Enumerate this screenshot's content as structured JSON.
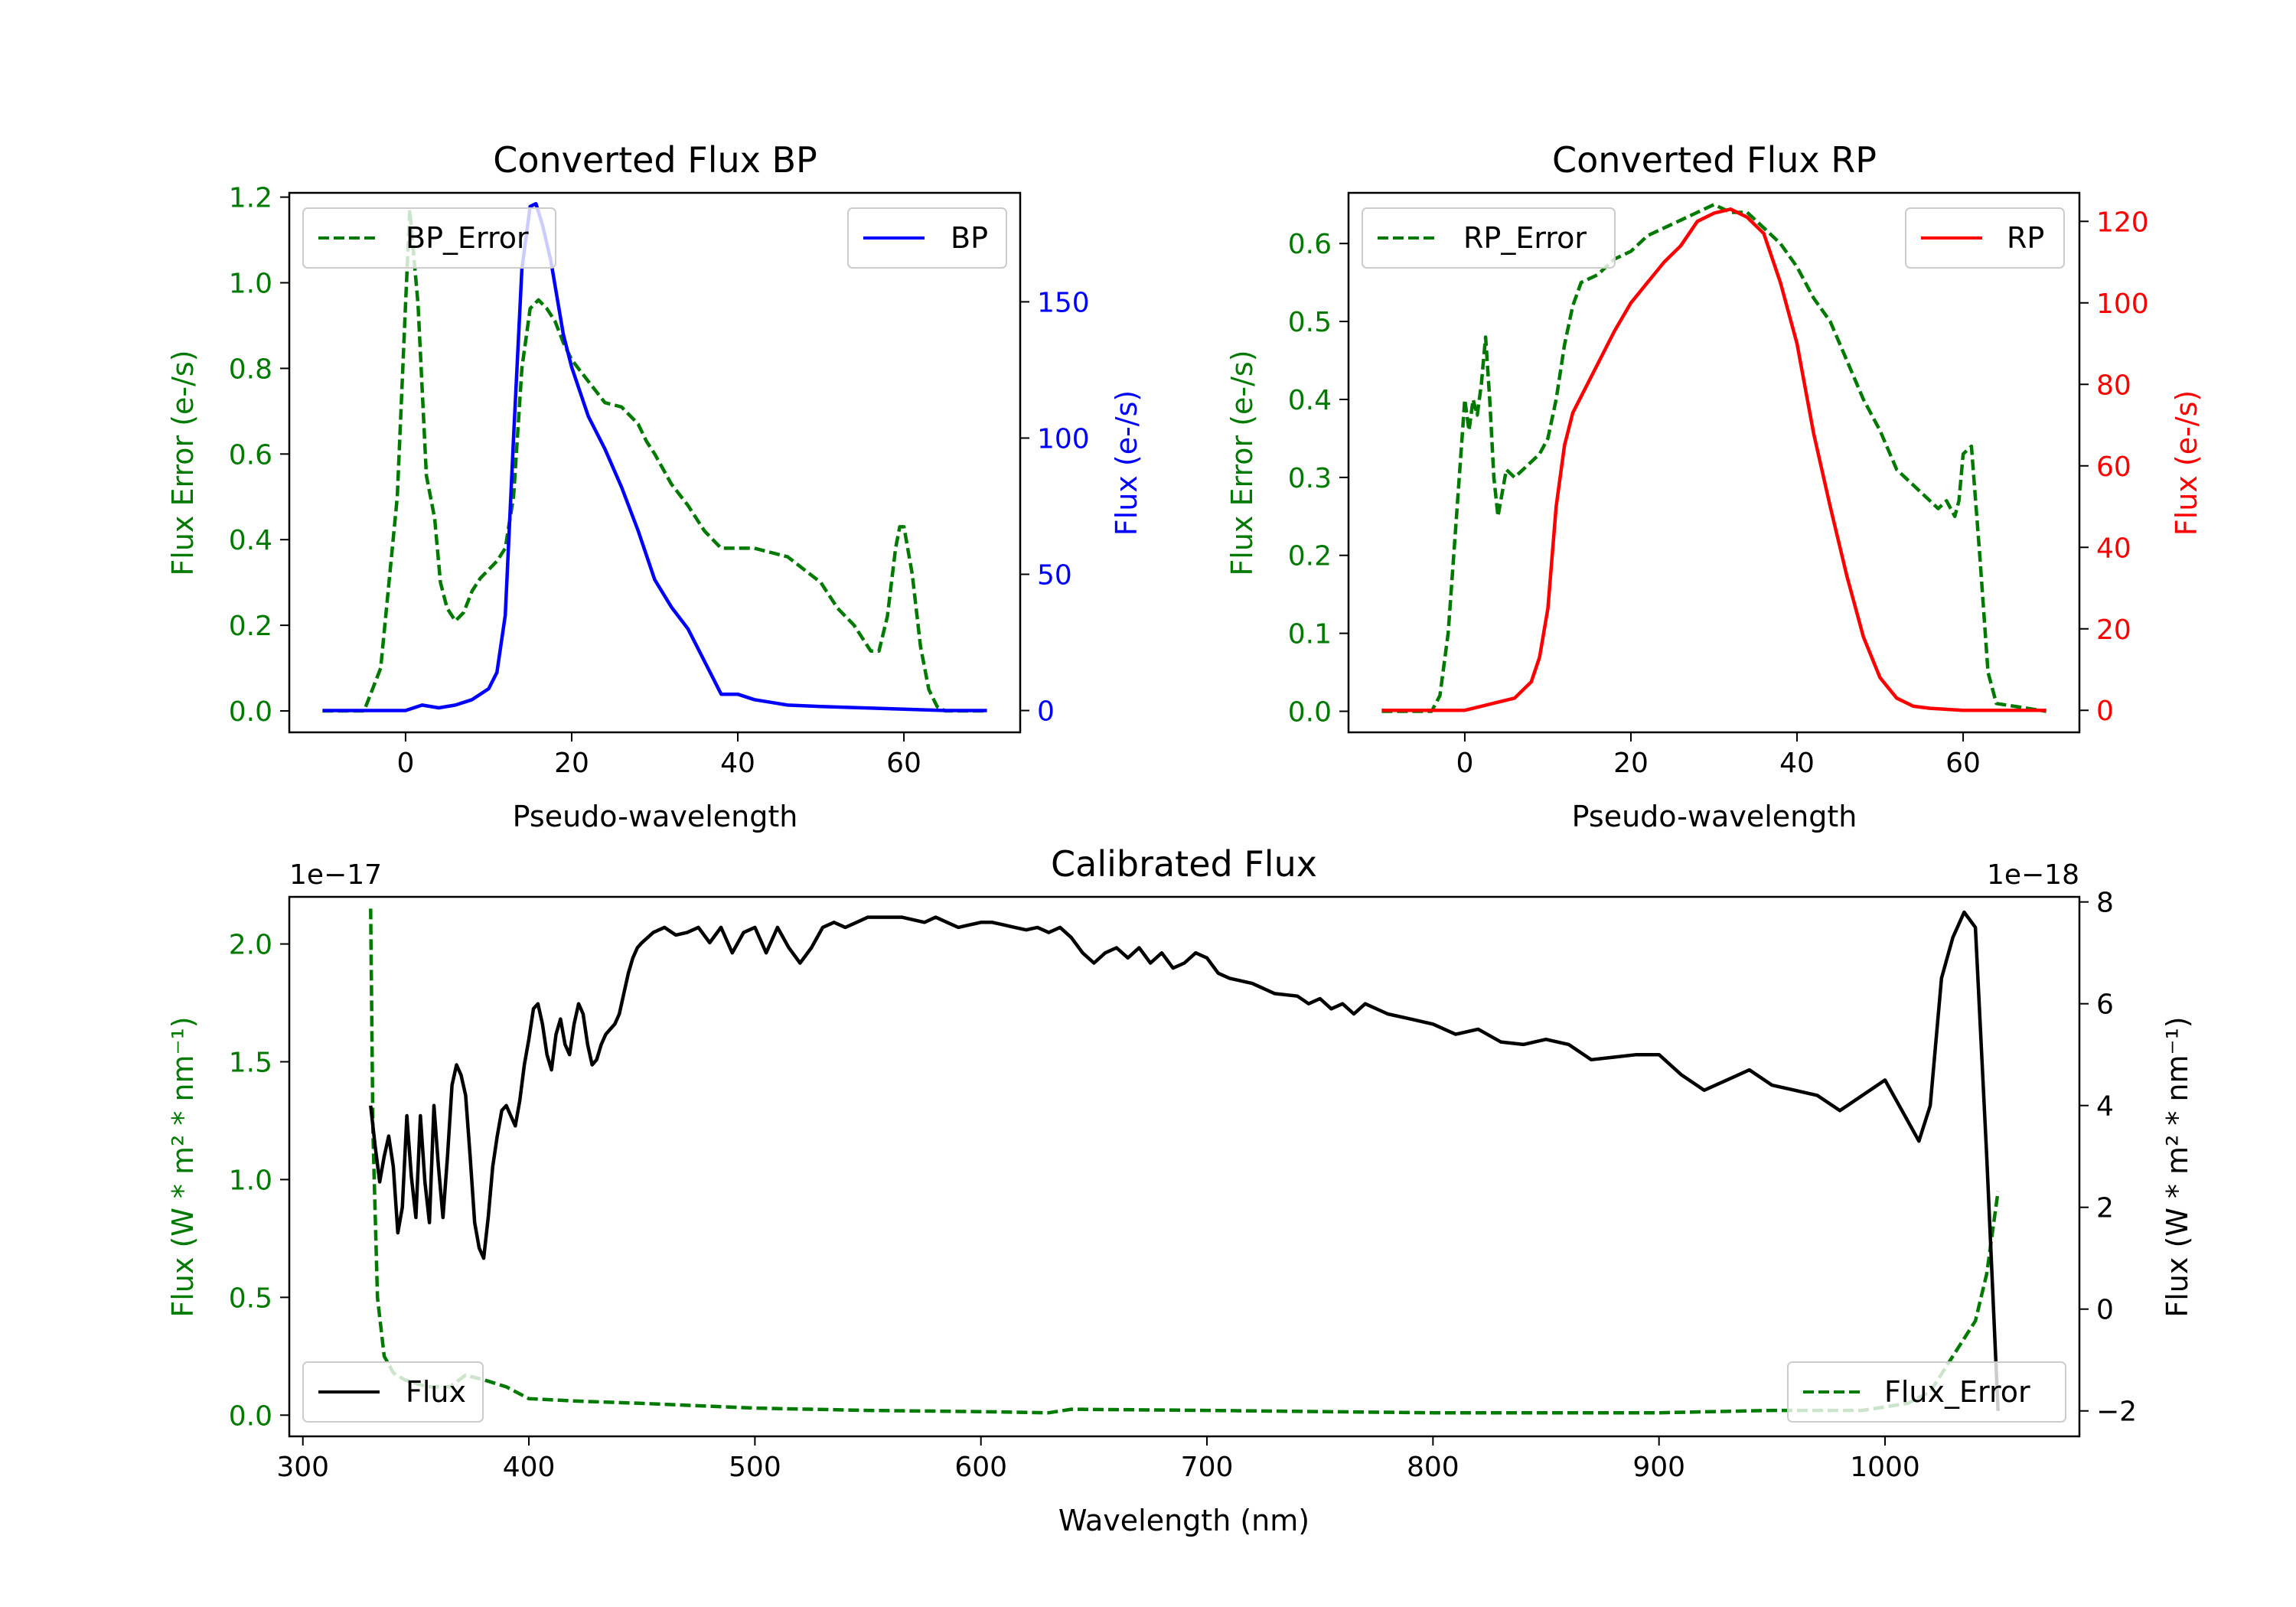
{
  "colors": {
    "green": "#007a00",
    "blue": "#0000ff",
    "red": "#ff0000",
    "black": "#000000"
  },
  "chart_data": [
    {
      "id": "bp",
      "type": "line",
      "title": "Converted Flux BP",
      "xlabel": "Pseudo-wavelength",
      "ylabel_left": "Flux Error (e-/s)",
      "ylabel_right": "Flux (e-/s)",
      "xlim": [
        -14,
        74
      ],
      "ylim_left": [
        -0.05,
        1.21
      ],
      "ylim_right": [
        -8,
        190
      ],
      "xticks": [
        0,
        20,
        40,
        60
      ],
      "yticks_left": [
        "0.0",
        "0.2",
        "0.4",
        "0.6",
        "0.8",
        "1.0",
        "1.2"
      ],
      "yticks_right": [
        "0",
        "50",
        "100",
        "150"
      ],
      "legend_left": {
        "label": "BP_Error",
        "position": "upper left"
      },
      "legend_right": {
        "label": "BP",
        "position": "upper right"
      },
      "series": [
        {
          "name": "BP_Error",
          "axis": "left",
          "color": "green",
          "style": "dashed",
          "x": [
            -10,
            -5,
            -3,
            -1,
            0,
            0.5,
            1.5,
            2.5,
            3.5,
            4.2,
            5,
            6,
            7,
            8,
            9,
            10,
            11,
            12,
            13,
            14,
            15,
            16,
            17,
            18,
            19,
            20,
            22,
            24,
            26,
            28,
            29,
            30,
            32,
            34,
            36,
            38,
            40,
            42,
            44,
            46,
            48,
            50,
            52,
            54,
            56,
            57,
            58,
            59,
            59.5,
            60,
            61,
            62,
            63,
            64,
            65,
            70
          ],
          "y": [
            0.0,
            0.0,
            0.1,
            0.5,
            0.95,
            1.17,
            0.95,
            0.55,
            0.45,
            0.3,
            0.24,
            0.21,
            0.23,
            0.28,
            0.31,
            0.33,
            0.35,
            0.38,
            0.5,
            0.8,
            0.94,
            0.96,
            0.94,
            0.91,
            0.86,
            0.82,
            0.77,
            0.72,
            0.71,
            0.67,
            0.63,
            0.6,
            0.53,
            0.48,
            0.42,
            0.38,
            0.38,
            0.38,
            0.37,
            0.36,
            0.33,
            0.3,
            0.24,
            0.2,
            0.14,
            0.14,
            0.22,
            0.38,
            0.43,
            0.43,
            0.32,
            0.15,
            0.05,
            0.01,
            0.0,
            0.0
          ]
        },
        {
          "name": "BP",
          "axis": "right",
          "color": "blue",
          "style": "solid",
          "x": [
            -10,
            0,
            2,
            4,
            6,
            8,
            10,
            11,
            12,
            13,
            14,
            15,
            15.7,
            16.5,
            17.5,
            19,
            20,
            22,
            24,
            26,
            28,
            30,
            32,
            34,
            36,
            37,
            38,
            40,
            42,
            44,
            46,
            50,
            55,
            60,
            65,
            70
          ],
          "y": [
            0,
            0,
            2,
            1,
            2,
            4,
            8,
            14,
            35,
            100,
            162,
            185,
            186,
            178,
            165,
            138,
            126,
            108,
            96,
            82,
            66,
            48,
            38,
            30,
            18,
            12,
            6,
            6,
            4,
            3,
            2,
            1.5,
            1,
            0.5,
            0,
            0
          ]
        }
      ]
    },
    {
      "id": "rp",
      "type": "line",
      "title": "Converted Flux RP",
      "xlabel": "Pseudo-wavelength",
      "ylabel_left": "Flux Error (e-/s)",
      "ylabel_right": "Flux (e-/s)",
      "xlim": [
        -14,
        74
      ],
      "ylim_left": [
        -0.027,
        0.665
      ],
      "ylim_right": [
        -5.4,
        127
      ],
      "xticks": [
        0,
        20,
        40,
        60
      ],
      "yticks_left": [
        "0.0",
        "0.1",
        "0.2",
        "0.3",
        "0.4",
        "0.5",
        "0.6"
      ],
      "yticks_right": [
        "0",
        "20",
        "40",
        "60",
        "80",
        "100",
        "120"
      ],
      "legend_left": {
        "label": "RP_Error",
        "position": "upper left"
      },
      "legend_right": {
        "label": "RP",
        "position": "upper right"
      },
      "series": [
        {
          "name": "RP_Error",
          "axis": "left",
          "color": "green",
          "style": "dashed",
          "x": [
            -10,
            -4,
            -3,
            -2,
            -1,
            0,
            0.5,
            1,
            1.5,
            2,
            2.5,
            3,
            3.5,
            4,
            5,
            6,
            8,
            9,
            10,
            11,
            12,
            13,
            14,
            16,
            18,
            20,
            22,
            24,
            26,
            28,
            30,
            32,
            34,
            36,
            38,
            40,
            42,
            44,
            46,
            48,
            50,
            52,
            54,
            55,
            56,
            57,
            58,
            59,
            59.5,
            60,
            61,
            62,
            63,
            64,
            70
          ],
          "y": [
            0.0,
            0.0,
            0.02,
            0.1,
            0.25,
            0.4,
            0.36,
            0.4,
            0.38,
            0.42,
            0.48,
            0.4,
            0.3,
            0.25,
            0.31,
            0.3,
            0.32,
            0.33,
            0.35,
            0.4,
            0.47,
            0.52,
            0.55,
            0.56,
            0.58,
            0.59,
            0.61,
            0.62,
            0.63,
            0.64,
            0.65,
            0.64,
            0.64,
            0.62,
            0.6,
            0.57,
            0.53,
            0.5,
            0.45,
            0.4,
            0.36,
            0.31,
            0.29,
            0.28,
            0.27,
            0.26,
            0.27,
            0.25,
            0.27,
            0.33,
            0.34,
            0.2,
            0.05,
            0.01,
            0.0
          ]
        },
        {
          "name": "RP",
          "axis": "right",
          "color": "red",
          "style": "solid",
          "x": [
            -10,
            0,
            2,
            4,
            6,
            8,
            9,
            10,
            11,
            12,
            13,
            14,
            16,
            18,
            20,
            22,
            24,
            26,
            28,
            30,
            32,
            34,
            36,
            38,
            40,
            42,
            44,
            46,
            48,
            50,
            52,
            54,
            56,
            60,
            65,
            70
          ],
          "y": [
            0,
            0,
            1,
            2,
            3,
            7,
            13,
            25,
            50,
            65,
            73,
            77,
            85,
            93,
            100,
            105,
            110,
            114,
            120,
            122,
            123,
            121,
            117,
            105,
            90,
            68,
            50,
            33,
            18,
            8,
            3,
            1,
            0.5,
            0,
            0,
            0
          ]
        }
      ]
    },
    {
      "id": "calibrated",
      "type": "line",
      "title": "Calibrated Flux",
      "xlabel": "Wavelength (nm)",
      "ylabel_left": "Flux (W * m² * nm⁻¹)",
      "ylabel_right": "Flux (W * m² * nm⁻¹)",
      "offset_left": "1e−17",
      "offset_right": "1e−18",
      "xlim": [
        294,
        1086
      ],
      "ylim_left": [
        -0.09,
        2.2
      ],
      "ylim_right": [
        -2.5,
        8.1
      ],
      "xticks": [
        300,
        400,
        500,
        600,
        700,
        800,
        900,
        1000
      ],
      "yticks_left": [
        "0.0",
        "0.5",
        "1.0",
        "1.5",
        "2.0"
      ],
      "yticks_right": [
        "−2",
        "0",
        "2",
        "4",
        "6",
        "8"
      ],
      "legend_left": {
        "label": "Flux",
        "position": "lower left"
      },
      "legend_right": {
        "label": "Flux_Error",
        "position": "lower right"
      },
      "series": [
        {
          "name": "Flux_Error",
          "axis": "left",
          "color": "green",
          "style": "dashed",
          "x": [
            330,
            331,
            333,
            336,
            340,
            345,
            355,
            365,
            372,
            380,
            390,
            400,
            420,
            450,
            500,
            550,
            600,
            630,
            640,
            700,
            800,
            900,
            950,
            990,
            1010,
            1020,
            1030,
            1040,
            1045,
            1050
          ],
          "y": [
            2.15,
            1.2,
            0.5,
            0.25,
            0.18,
            0.15,
            0.12,
            0.12,
            0.17,
            0.15,
            0.12,
            0.07,
            0.06,
            0.05,
            0.03,
            0.02,
            0.015,
            0.01,
            0.025,
            0.02,
            0.01,
            0.01,
            0.02,
            0.02,
            0.05,
            0.1,
            0.25,
            0.4,
            0.6,
            0.95
          ]
        },
        {
          "name": "Flux",
          "axis": "right",
          "color": "black",
          "style": "solid",
          "x": [
            330,
            332,
            334,
            336,
            338,
            340,
            342,
            344,
            346,
            348,
            350,
            352,
            354,
            356,
            358,
            360,
            362,
            364,
            366,
            368,
            370,
            372,
            374,
            376,
            378,
            380,
            382,
            384,
            386,
            388,
            390,
            392,
            394,
            396,
            398,
            400,
            402,
            404,
            406,
            408,
            410,
            412,
            414,
            416,
            418,
            420,
            422,
            424,
            426,
            428,
            430,
            432,
            434,
            436,
            438,
            440,
            442,
            444,
            446,
            448,
            450,
            455,
            460,
            465,
            470,
            475,
            480,
            485,
            490,
            495,
            500,
            505,
            510,
            515,
            520,
            525,
            530,
            535,
            540,
            545,
            550,
            555,
            560,
            565,
            570,
            575,
            580,
            585,
            590,
            595,
            600,
            605,
            610,
            615,
            620,
            625,
            630,
            635,
            640,
            645,
            650,
            655,
            660,
            665,
            670,
            675,
            680,
            685,
            690,
            695,
            700,
            705,
            710,
            720,
            730,
            740,
            745,
            750,
            755,
            760,
            765,
            770,
            780,
            790,
            800,
            810,
            820,
            830,
            840,
            850,
            860,
            870,
            880,
            890,
            900,
            910,
            920,
            930,
            940,
            950,
            960,
            970,
            980,
            990,
            1000,
            1010,
            1015,
            1020,
            1025,
            1030,
            1035,
            1040,
            1045,
            1050
          ],
          "y": [
            4.0,
            3.2,
            2.5,
            3.0,
            3.4,
            2.8,
            1.5,
            2.0,
            3.8,
            2.6,
            1.8,
            3.8,
            2.5,
            1.7,
            4.0,
            2.8,
            1.8,
            3.0,
            4.4,
            4.8,
            4.6,
            4.2,
            3.0,
            1.7,
            1.2,
            1.0,
            1.8,
            2.8,
            3.4,
            3.9,
            4.0,
            3.8,
            3.6,
            4.1,
            4.8,
            5.3,
            5.9,
            6.0,
            5.6,
            5.0,
            4.7,
            5.4,
            5.7,
            5.2,
            5.0,
            5.6,
            6.0,
            5.8,
            5.2,
            4.8,
            4.9,
            5.2,
            5.4,
            5.5,
            5.6,
            5.8,
            6.2,
            6.6,
            6.9,
            7.1,
            7.2,
            7.4,
            7.5,
            7.35,
            7.4,
            7.5,
            7.2,
            7.5,
            7.0,
            7.4,
            7.5,
            7.0,
            7.5,
            7.1,
            6.8,
            7.1,
            7.5,
            7.6,
            7.5,
            7.6,
            7.7,
            7.7,
            7.7,
            7.7,
            7.65,
            7.6,
            7.7,
            7.6,
            7.5,
            7.55,
            7.6,
            7.6,
            7.55,
            7.5,
            7.45,
            7.5,
            7.4,
            7.5,
            7.3,
            7.0,
            6.8,
            7.0,
            7.1,
            6.9,
            7.1,
            6.8,
            7.0,
            6.7,
            6.8,
            7.0,
            6.9,
            6.6,
            6.5,
            6.4,
            6.2,
            6.15,
            6.0,
            6.1,
            5.9,
            6.0,
            5.8,
            6.0,
            5.8,
            5.7,
            5.6,
            5.4,
            5.5,
            5.25,
            5.2,
            5.3,
            5.2,
            4.9,
            4.95,
            5.0,
            5.0,
            4.6,
            4.3,
            4.5,
            4.7,
            4.4,
            4.3,
            4.2,
            3.9,
            4.2,
            4.5,
            3.7,
            3.3,
            4.0,
            6.5,
            7.3,
            7.8,
            7.5,
            3.0,
            -2.0
          ]
        }
      ]
    }
  ]
}
